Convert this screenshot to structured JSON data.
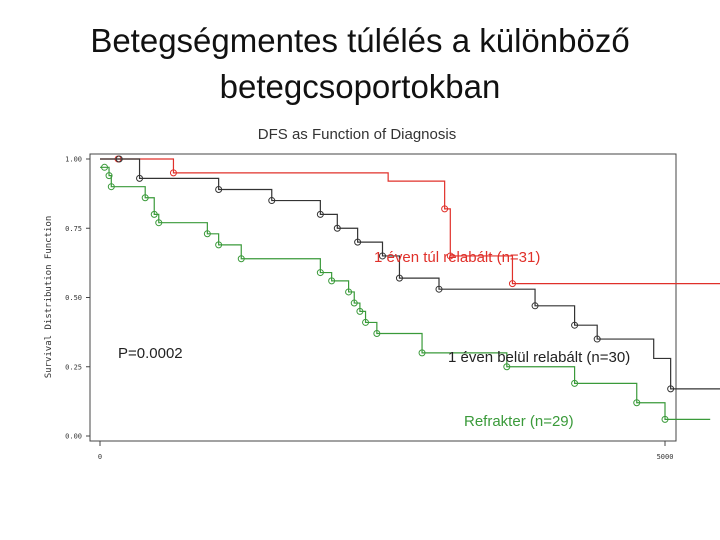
{
  "slide": {
    "title_line1": "Betegségmentes túlélés a különböző",
    "title_line2": "betegcsoportokban"
  },
  "chart_data": {
    "type": "line",
    "title": "DFS as Function of Diagnosis",
    "ylabel": "Survival Distribution Function",
    "xlabel": "",
    "xlim": [
      0,
      5000
    ],
    "ylim": [
      0,
      1
    ],
    "x_ticks": [
      "0",
      "5000"
    ],
    "y_ticks": [
      "0.00",
      "0.25",
      "0.50",
      "0.75",
      "1.00"
    ],
    "annotation": "P=0.0002",
    "series": [
      {
        "name": "1 éven túl relabált (n=31)",
        "color": "#e0302a",
        "steps": [
          [
            0,
            1.0
          ],
          [
            650,
            0.95
          ],
          [
            2550,
            0.92
          ],
          [
            3050,
            0.82
          ],
          [
            3100,
            0.65
          ],
          [
            3650,
            0.55
          ],
          [
            7600,
            0.55
          ]
        ],
        "censored": [
          [
            160,
            1.0
          ],
          [
            650,
            0.95
          ],
          [
            3050,
            0.82
          ],
          [
            3100,
            0.65
          ],
          [
            3650,
            0.55
          ]
        ]
      },
      {
        "name": "1 éven belül relabált (n=30)",
        "color": "#333333",
        "steps": [
          [
            0,
            1.0
          ],
          [
            350,
            0.93
          ],
          [
            1050,
            0.89
          ],
          [
            1520,
            0.85
          ],
          [
            1950,
            0.8
          ],
          [
            2100,
            0.75
          ],
          [
            2280,
            0.7
          ],
          [
            2500,
            0.65
          ],
          [
            2650,
            0.57
          ],
          [
            3000,
            0.53
          ],
          [
            3850,
            0.47
          ],
          [
            4200,
            0.4
          ],
          [
            4400,
            0.35
          ],
          [
            4900,
            0.28
          ],
          [
            5050,
            0.17
          ],
          [
            7350,
            0.17
          ]
        ],
        "censored": [
          [
            170,
            1.0
          ],
          [
            350,
            0.93
          ],
          [
            1050,
            0.89
          ],
          [
            1520,
            0.85
          ],
          [
            1950,
            0.8
          ],
          [
            2100,
            0.75
          ],
          [
            2280,
            0.7
          ],
          [
            2500,
            0.65
          ],
          [
            2650,
            0.57
          ],
          [
            3000,
            0.53
          ],
          [
            3850,
            0.47
          ],
          [
            4200,
            0.4
          ],
          [
            4400,
            0.35
          ],
          [
            5050,
            0.17
          ]
        ]
      },
      {
        "name": "Refrakter (n=29)",
        "color": "#3a9a3a",
        "steps": [
          [
            0,
            0.97
          ],
          [
            80,
            0.94
          ],
          [
            100,
            0.9
          ],
          [
            400,
            0.86
          ],
          [
            480,
            0.8
          ],
          [
            520,
            0.77
          ],
          [
            950,
            0.73
          ],
          [
            1050,
            0.69
          ],
          [
            1250,
            0.64
          ],
          [
            1950,
            0.59
          ],
          [
            2050,
            0.56
          ],
          [
            2200,
            0.52
          ],
          [
            2250,
            0.48
          ],
          [
            2300,
            0.45
          ],
          [
            2350,
            0.41
          ],
          [
            2450,
            0.37
          ],
          [
            2850,
            0.3
          ],
          [
            3600,
            0.25
          ],
          [
            4200,
            0.19
          ],
          [
            4750,
            0.12
          ],
          [
            5000,
            0.06
          ],
          [
            5400,
            0.06
          ]
        ],
        "censored": [
          [
            40,
            0.97
          ],
          [
            80,
            0.94
          ],
          [
            100,
            0.9
          ],
          [
            400,
            0.86
          ],
          [
            480,
            0.8
          ],
          [
            520,
            0.77
          ],
          [
            950,
            0.73
          ],
          [
            1050,
            0.69
          ],
          [
            1250,
            0.64
          ],
          [
            1950,
            0.59
          ],
          [
            2050,
            0.56
          ],
          [
            2200,
            0.52
          ],
          [
            2250,
            0.48
          ],
          [
            2300,
            0.45
          ],
          [
            2350,
            0.41
          ],
          [
            2450,
            0.37
          ],
          [
            2850,
            0.3
          ],
          [
            3600,
            0.25
          ],
          [
            4200,
            0.19
          ],
          [
            4750,
            0.12
          ],
          [
            5000,
            0.06
          ]
        ]
      }
    ]
  }
}
